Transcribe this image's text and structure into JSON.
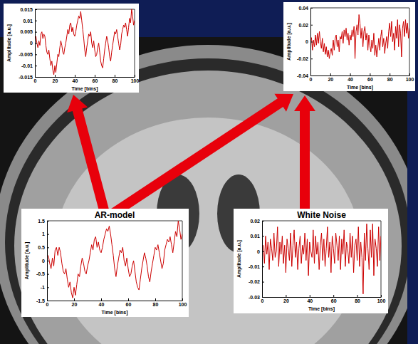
{
  "chart_data": [
    {
      "type": "line",
      "x_label": "Time [bins]",
      "y_label": "Amplitude [a.u.]",
      "x": [
        1,
        2,
        3,
        4,
        5,
        6,
        7,
        8,
        9,
        10,
        11,
        12,
        13,
        14,
        15,
        16,
        17,
        18,
        19,
        20,
        21,
        22,
        23,
        24,
        25,
        26,
        27,
        28,
        29,
        30,
        31,
        32,
        33,
        34,
        35,
        36,
        37,
        38,
        39,
        40,
        41,
        42,
        43,
        44,
        45,
        46,
        47,
        48,
        49,
        50,
        51,
        52,
        53,
        54,
        55,
        56,
        57,
        58,
        59,
        60,
        61,
        62,
        63,
        64,
        65,
        66,
        67,
        68,
        69,
        70,
        71,
        72,
        73,
        74,
        75,
        76,
        77,
        78,
        79,
        80,
        81,
        82,
        83,
        84,
        85,
        86,
        87,
        88,
        89,
        90,
        91,
        92,
        93,
        94,
        95,
        96,
        97,
        98,
        99,
        100
      ],
      "series": [
        {
          "color": "#cc0000",
          "values": [
            0.003,
            0.0,
            -0.002,
            0.001,
            -0.001,
            0.004,
            0.005,
            0.002,
            0.004,
            0.003,
            -0.001,
            -0.004,
            -0.005,
            -0.003,
            -0.007,
            -0.01,
            -0.008,
            -0.012,
            -0.014,
            -0.01,
            -0.013,
            -0.009,
            -0.005,
            -0.006,
            -0.002,
            0.001,
            -0.001,
            -0.004,
            -0.005,
            -0.002,
            0.0,
            0.003,
            0.006,
            0.004,
            0.008,
            0.009,
            0.005,
            0.007,
            0.004,
            0.003,
            0.005,
            0.008,
            0.01,
            0.012,
            0.011,
            0.014,
            0.01,
            0.006,
            0.002,
            -0.003,
            -0.006,
            -0.002,
            0.001,
            0.004,
            0.003,
            0.005,
            0.0,
            -0.002,
            0.001,
            -0.003,
            -0.006,
            -0.005,
            -0.002,
            0.0,
            -0.004,
            -0.008,
            -0.01,
            -0.011,
            -0.007,
            -0.003,
            0.0,
            0.003,
            0.001,
            -0.002,
            -0.006,
            -0.008,
            -0.004,
            -0.001,
            0.002,
            0.005,
            0.004,
            0.006,
            0.003,
            0.0,
            -0.003,
            -0.001,
            0.004,
            0.006,
            0.008,
            0.007,
            0.009,
            0.006,
            0.003,
            0.007,
            0.011,
            0.009,
            0.015,
            0.012,
            0.008,
            0.01
          ]
        }
      ],
      "xlim": [
        0,
        100
      ],
      "xticks": [
        0,
        20,
        40,
        60,
        80,
        100
      ],
      "ylim": [
        -0.015,
        0.015
      ],
      "yticks": [
        -0.015,
        -0.01,
        -0.005,
        0,
        0.005,
        0.01,
        0.015
      ]
    },
    {
      "type": "line",
      "x_label": "Time [bins]",
      "y_label": "Amplitude [a.u.]",
      "x": [
        1,
        2,
        3,
        4,
        5,
        6,
        7,
        8,
        9,
        10,
        11,
        12,
        13,
        14,
        15,
        16,
        17,
        18,
        19,
        20,
        21,
        22,
        23,
        24,
        25,
        26,
        27,
        28,
        29,
        30,
        31,
        32,
        33,
        34,
        35,
        36,
        37,
        38,
        39,
        40,
        41,
        42,
        43,
        44,
        45,
        46,
        47,
        48,
        49,
        50,
        51,
        52,
        53,
        54,
        55,
        56,
        57,
        58,
        59,
        60,
        61,
        62,
        63,
        64,
        65,
        66,
        67,
        68,
        69,
        70,
        71,
        72,
        73,
        74,
        75,
        76,
        77,
        78,
        79,
        80,
        81,
        82,
        83,
        84,
        85,
        86,
        87,
        88,
        89,
        90,
        91,
        92,
        93,
        94,
        95,
        96,
        97,
        98,
        99,
        100
      ],
      "series": [
        {
          "color": "#cc0000",
          "values": [
            0.005,
            -0.01,
            0.002,
            -0.006,
            0.008,
            -0.004,
            0.01,
            -0.002,
            0.012,
            0.0,
            -0.008,
            0.004,
            -0.012,
            -0.002,
            -0.015,
            -0.006,
            -0.018,
            -0.01,
            -0.02,
            -0.012,
            -0.008,
            -0.016,
            0.002,
            -0.01,
            0.004,
            0.008,
            -0.006,
            0.002,
            -0.012,
            0.006,
            0.003,
            0.012,
            -0.002,
            0.014,
            0.006,
            0.016,
            0.002,
            0.01,
            -0.004,
            0.008,
            0.002,
            0.014,
            0.006,
            0.018,
            -0.02,
            0.012,
            0.02,
            0.008,
            0.032,
            0.022,
            0.004,
            0.016,
            -0.006,
            0.012,
            0.018,
            0.002,
            0.01,
            -0.01,
            0.008,
            -0.004,
            -0.012,
            0.002,
            -0.008,
            0.01,
            -0.016,
            -0.004,
            -0.018,
            -0.008,
            0.004,
            -0.01,
            0.006,
            0.014,
            -0.006,
            0.004,
            -0.014,
            -0.002,
            0.006,
            -0.008,
            0.012,
            0.022,
            0.006,
            0.024,
            0.0,
            0.01,
            -0.01,
            0.018,
            0.004,
            0.026,
            -0.006,
            0.02,
            0.01,
            -0.018,
            0.016,
            0.024,
            0.006,
            0.026,
            0.01,
            0.022,
            0.004,
            0.016
          ]
        }
      ],
      "xlim": [
        0,
        100
      ],
      "xticks": [
        0,
        20,
        40,
        60,
        80,
        100
      ],
      "ylim": [
        -0.04,
        0.04
      ],
      "yticks": [
        -0.04,
        -0.02,
        0,
        0.02,
        0.04
      ]
    },
    {
      "type": "line",
      "title": "AR-model",
      "x_label": "Time [bins]",
      "y_label": "Amplitude [a.u.]",
      "x": [
        1,
        2,
        3,
        4,
        5,
        6,
        7,
        8,
        9,
        10,
        11,
        12,
        13,
        14,
        15,
        16,
        17,
        18,
        19,
        20,
        21,
        22,
        23,
        24,
        25,
        26,
        27,
        28,
        29,
        30,
        31,
        32,
        33,
        34,
        35,
        36,
        37,
        38,
        39,
        40,
        41,
        42,
        43,
        44,
        45,
        46,
        47,
        48,
        49,
        50,
        51,
        52,
        53,
        54,
        55,
        56,
        57,
        58,
        59,
        60,
        61,
        62,
        63,
        64,
        65,
        66,
        67,
        68,
        69,
        70,
        71,
        72,
        73,
        74,
        75,
        76,
        77,
        78,
        79,
        80,
        81,
        82,
        83,
        84,
        85,
        86,
        87,
        88,
        89,
        90,
        91,
        92,
        93,
        94,
        95,
        96,
        97,
        98,
        99,
        100
      ],
      "series": [
        {
          "color": "#cc0000",
          "values": [
            0.2,
            -0.1,
            -0.3,
            0.1,
            -0.2,
            0.4,
            0.5,
            0.2,
            0.5,
            0.3,
            -0.1,
            -0.4,
            -0.5,
            -0.3,
            -0.7,
            -1.0,
            -0.8,
            -1.2,
            -1.4,
            -1.0,
            -1.3,
            -0.9,
            -0.5,
            -0.6,
            -0.2,
            0.1,
            -0.1,
            -0.4,
            -0.5,
            -0.2,
            0.0,
            0.3,
            0.6,
            0.4,
            0.8,
            0.9,
            0.5,
            0.7,
            0.4,
            0.3,
            0.5,
            0.8,
            1.0,
            1.2,
            1.1,
            1.3,
            1.0,
            0.6,
            0.2,
            -0.3,
            -0.6,
            -0.2,
            0.1,
            0.4,
            0.3,
            0.5,
            0.0,
            -0.2,
            0.1,
            -0.3,
            -0.6,
            -0.5,
            -0.2,
            0.0,
            -0.4,
            -0.8,
            -1.0,
            -1.1,
            -0.7,
            -0.3,
            0.0,
            0.3,
            0.1,
            -0.2,
            -0.6,
            -0.8,
            -0.4,
            -0.1,
            0.2,
            0.5,
            0.4,
            0.6,
            0.3,
            0.0,
            -0.3,
            -0.1,
            0.4,
            0.6,
            0.8,
            0.7,
            0.9,
            0.6,
            0.3,
            0.7,
            1.1,
            0.9,
            1.5,
            1.2,
            0.8,
            1.0
          ]
        }
      ],
      "xlim": [
        0,
        100
      ],
      "xticks": [
        0,
        20,
        40,
        60,
        80,
        100
      ],
      "ylim": [
        -1.5,
        1.5
      ],
      "yticks": [
        -1.5,
        -1,
        -0.5,
        0,
        0.5,
        1,
        1.5
      ]
    },
    {
      "type": "line",
      "title": "White Noise",
      "x_label": "Time [bins]",
      "y_label": "Amplitude [a.u.]",
      "x": [
        1,
        2,
        3,
        4,
        5,
        6,
        7,
        8,
        9,
        10,
        11,
        12,
        13,
        14,
        15,
        16,
        17,
        18,
        19,
        20,
        21,
        22,
        23,
        24,
        25,
        26,
        27,
        28,
        29,
        30,
        31,
        32,
        33,
        34,
        35,
        36,
        37,
        38,
        39,
        40,
        41,
        42,
        43,
        44,
        45,
        46,
        47,
        48,
        49,
        50,
        51,
        52,
        53,
        54,
        55,
        56,
        57,
        58,
        59,
        60,
        61,
        62,
        63,
        64,
        65,
        66,
        67,
        68,
        69,
        70,
        71,
        72,
        73,
        74,
        75,
        76,
        77,
        78,
        79,
        80,
        81,
        82,
        83,
        84,
        85,
        86,
        87,
        88,
        89,
        90,
        91,
        92,
        93,
        94,
        95,
        96,
        97,
        98,
        99,
        100
      ],
      "series": [
        {
          "color": "#cc0000",
          "values": [
            0.004,
            -0.008,
            0.01,
            -0.002,
            0.006,
            -0.012,
            0.008,
            0.002,
            -0.006,
            0.012,
            -0.004,
            0.0,
            0.016,
            -0.01,
            0.006,
            -0.002,
            0.01,
            -0.008,
            0.004,
            -0.014,
            0.008,
            0.002,
            -0.006,
            0.012,
            -0.01,
            0.004,
            0.014,
            -0.004,
            0.006,
            -0.012,
            0.002,
            0.01,
            -0.008,
            0.004,
            -0.002,
            0.012,
            -0.006,
            0.008,
            -0.016,
            0.006,
            0.0,
            -0.004,
            0.014,
            -0.008,
            0.01,
            -0.002,
            0.006,
            -0.012,
            0.004,
            0.012,
            -0.006,
            0.008,
            -0.01,
            0.002,
            0.016,
            -0.004,
            0.006,
            -0.014,
            0.01,
            0.002,
            -0.008,
            0.012,
            0.004,
            -0.006,
            0.01,
            -0.012,
            0.008,
            -0.002,
            0.014,
            -0.01,
            0.006,
            0.002,
            -0.008,
            0.012,
            -0.004,
            0.01,
            -0.014,
            0.004,
            0.008,
            -0.006,
            0.016,
            -0.01,
            0.006,
            -0.004,
            -0.028,
            0.012,
            -0.006,
            0.018,
            0.002,
            -0.012,
            0.014,
            -0.004,
            0.018,
            -0.016,
            0.008,
            0.002,
            -0.01,
            0.016,
            -0.006,
            0.01
          ]
        }
      ],
      "xlim": [
        0,
        100
      ],
      "xticks": [
        0,
        20,
        40,
        60,
        80,
        100
      ],
      "ylim": [
        -0.03,
        0.02
      ],
      "yticks": [
        -0.03,
        -0.02,
        -0.01,
        0,
        0.01,
        0.02
      ]
    }
  ]
}
